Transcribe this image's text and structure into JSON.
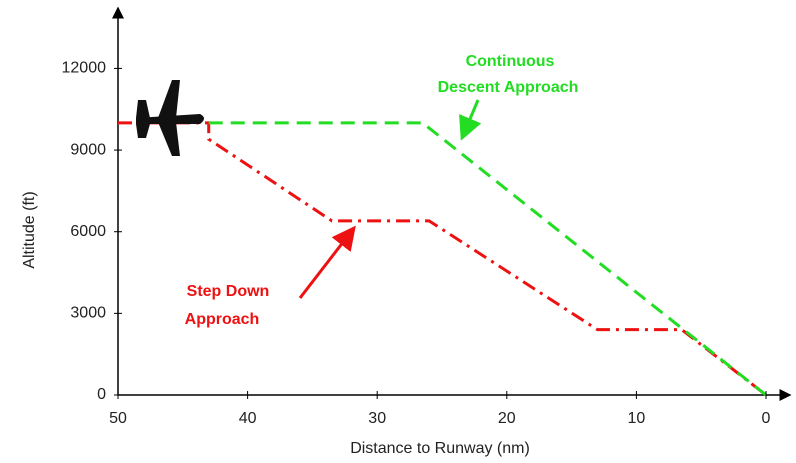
{
  "chart_data": {
    "type": "line",
    "x_label": "Distance to Runway (nm)",
    "y_label": "Altitude (ft)",
    "xlim": [
      50,
      0
    ],
    "xticks": [
      50,
      40,
      30,
      20,
      10,
      0
    ],
    "ylim": [
      0,
      14000
    ],
    "yticks": [
      0,
      3000,
      6000,
      9000,
      12000
    ],
    "series": [
      {
        "name": "Continuous Descent Approach",
        "color": "#22dd22",
        "dash": "dashed",
        "x": [
          43,
          26.5,
          0
        ],
        "values": [
          10000,
          10000,
          0
        ]
      },
      {
        "name": "Step Down Approach",
        "color": "#ee1111",
        "dash": "dashdot",
        "x": [
          50,
          43,
          43,
          33.5,
          26,
          13,
          6.5,
          0
        ],
        "values": [
          10000,
          10000,
          9400,
          6400,
          6400,
          2400,
          2400,
          0
        ]
      }
    ],
    "annotations": [
      {
        "lines": [
          "Continuous",
          "Descent Approach"
        ],
        "color": "#22dd22"
      },
      {
        "lines": [
          "Step Down",
          "Approach"
        ],
        "color": "#ee1111"
      }
    ]
  }
}
